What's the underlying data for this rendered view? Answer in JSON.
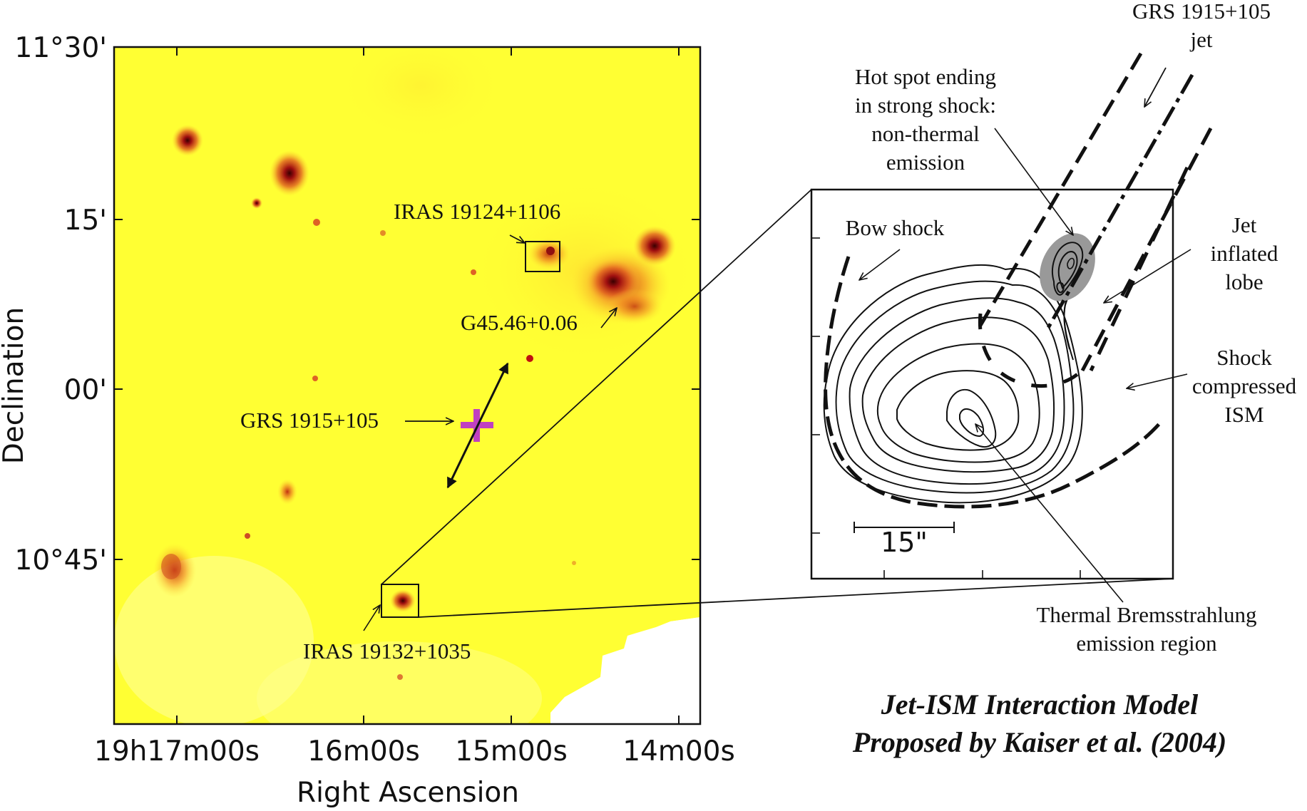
{
  "sky_map": {
    "y_axis_label": "Declination",
    "x_axis_label": "Right Ascension",
    "y_ticks": [
      "11°30'",
      "15'",
      "00'",
      "10°45'"
    ],
    "x_ticks": [
      "19h17m00s",
      "16m00s",
      "15m00s",
      "14m00s"
    ],
    "background_color": "#ffff33",
    "labels": {
      "iras_north": "IRAS 19124+1106",
      "g45": "G45.46+0.06",
      "grs_source": "GRS 1915+105",
      "iras_south": "IRAS 19132+1035"
    },
    "marker_color": "#c040c0"
  },
  "inset": {
    "scale_bar_label": "15\"",
    "annotations": {
      "jet_line1": "GRS 1915+105",
      "jet_line2": "jet",
      "hotspot_line1": "Hot spot ending",
      "hotspot_line2": "in strong shock:",
      "hotspot_line3": "non-thermal",
      "hotspot_line4": "emission",
      "bow_shock": "Bow shock",
      "lobe_line1": "Jet",
      "lobe_line2": "inflated",
      "lobe_line3": "lobe",
      "ism_line1": "Shock",
      "ism_line2": "compressed",
      "ism_line3": "ISM",
      "thermal_line1": "Thermal Bremsstrahlung",
      "thermal_line2": "emission region"
    }
  },
  "caption": {
    "line1": "Jet-ISM Interaction Model",
    "line2": "Proposed by Kaiser et al. (2004)"
  }
}
